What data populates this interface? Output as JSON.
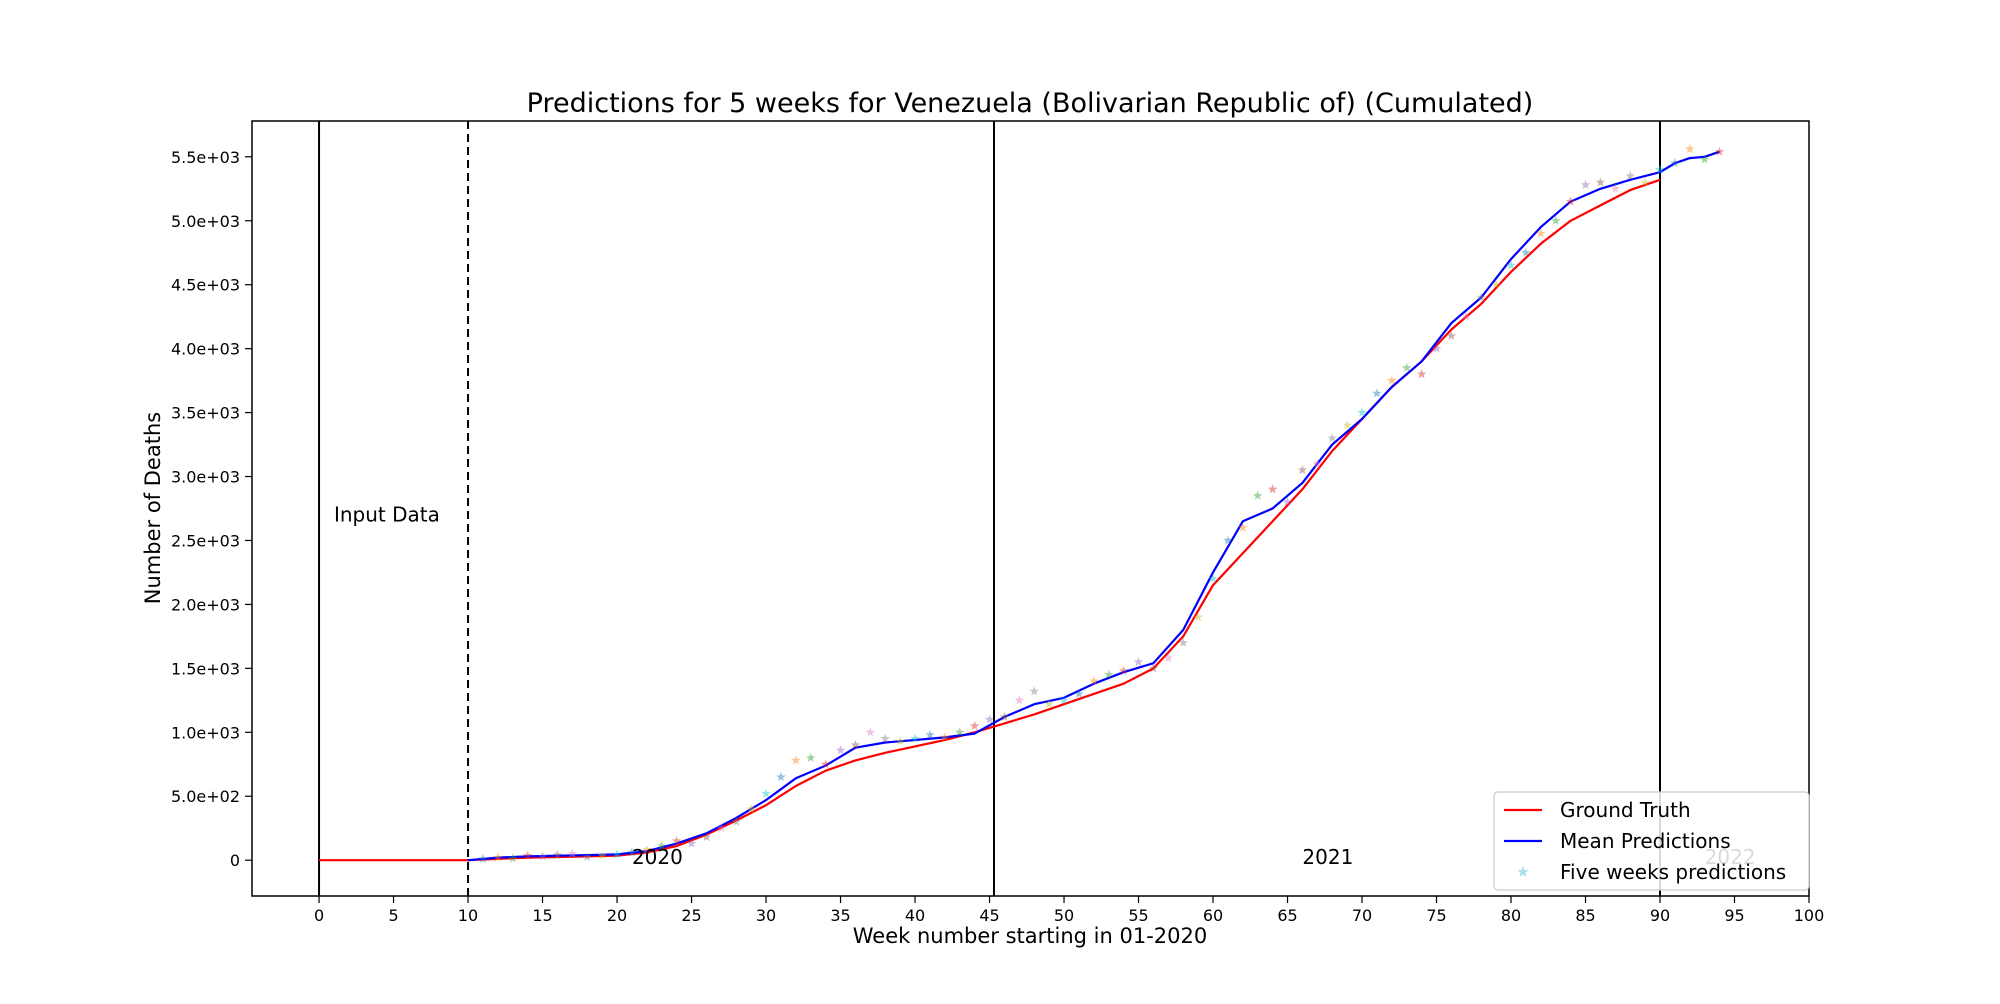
{
  "chart_data": {
    "type": "line",
    "title": "Predictions for 5 weeks for Venezuela (Bolivarian Republic of) (Cumulated)",
    "xlabel": "Week number starting in 01-2020",
    "ylabel": "Number of Deaths",
    "xlim": [
      -4.5,
      100
    ],
    "ylim": [
      -280,
      5780
    ],
    "x_ticks": [
      0,
      5,
      10,
      15,
      20,
      25,
      30,
      35,
      40,
      45,
      50,
      55,
      60,
      65,
      70,
      75,
      80,
      85,
      90,
      95,
      100
    ],
    "x_tick_labels": [
      "0",
      "5",
      "10",
      "15",
      "20",
      "25",
      "30",
      "35",
      "40",
      "45",
      "50",
      "55",
      "60",
      "65",
      "70",
      "75",
      "80",
      "85",
      "90",
      "95",
      "100"
    ],
    "y_ticks": [
      0,
      500,
      1000,
      1500,
      2000,
      2500,
      3000,
      3500,
      4000,
      4500,
      5000,
      5500
    ],
    "y_tick_labels": [
      "0",
      "5.0e+02",
      "1.0e+03",
      "1.5e+03",
      "2.0e+03",
      "2.5e+03",
      "3.0e+03",
      "3.5e+03",
      "4.0e+03",
      "4.5e+03",
      "5.0e+03",
      "5.5e+03"
    ],
    "grid": false,
    "legend_position": "lower-right",
    "vertical_lines": [
      {
        "x": 0,
        "style": "solid"
      },
      {
        "x": 10,
        "style": "dashed"
      },
      {
        "x": 45.3,
        "style": "solid"
      },
      {
        "x": 90,
        "style": "solid"
      }
    ],
    "annotations": [
      {
        "text": "Input Data",
        "x": 1,
        "y": 2650,
        "color": "#000000"
      },
      {
        "text": "2020",
        "x": 21,
        "y": -30,
        "color": "#000000"
      },
      {
        "text": "2021",
        "x": 66,
        "y": -30,
        "color": "#000000"
      },
      {
        "text": "2022",
        "x": 93,
        "y": -30,
        "color": "#bfbfbf"
      }
    ],
    "series": [
      {
        "name": "Ground Truth",
        "color": "#ff0000",
        "style": "line",
        "x": [
          0,
          2,
          4,
          6,
          8,
          10,
          12,
          14,
          16,
          18,
          20,
          22,
          24,
          26,
          28,
          30,
          32,
          34,
          36,
          38,
          40,
          42,
          44,
          46,
          48,
          50,
          52,
          54,
          56,
          58,
          60,
          62,
          64,
          66,
          68,
          70,
          72,
          74,
          76,
          78,
          80,
          82,
          84,
          86,
          88,
          90
        ],
        "values": [
          0,
          0,
          0,
          0,
          0,
          0,
          10,
          20,
          25,
          30,
          35,
          60,
          110,
          200,
          310,
          430,
          580,
          700,
          780,
          840,
          890,
          940,
          1000,
          1070,
          1140,
          1220,
          1300,
          1380,
          1500,
          1750,
          2150,
          2400,
          2650,
          2900,
          3200,
          3450,
          3700,
          3900,
          4150,
          4350,
          4600,
          4820,
          5000,
          5120,
          5240,
          5320
        ]
      },
      {
        "name": "Mean Predictions",
        "color": "#0000ff",
        "style": "line",
        "x": [
          10,
          12,
          14,
          16,
          18,
          20,
          22,
          24,
          26,
          28,
          30,
          32,
          34,
          36,
          38,
          40,
          42,
          44,
          46,
          48,
          50,
          52,
          54,
          56,
          58,
          60,
          61,
          62,
          64,
          66,
          68,
          70,
          72,
          74,
          76,
          78,
          80,
          82,
          84,
          86,
          88,
          90,
          91,
          92,
          93,
          94
        ],
        "values": [
          0,
          20,
          30,
          35,
          40,
          45,
          70,
          130,
          210,
          330,
          470,
          640,
          740,
          880,
          920,
          940,
          960,
          990,
          1120,
          1220,
          1270,
          1380,
          1470,
          1540,
          1800,
          2250,
          2450,
          2650,
          2750,
          2950,
          3250,
          3450,
          3700,
          3900,
          4200,
          4400,
          4700,
          4950,
          5150,
          5250,
          5320,
          5380,
          5450,
          5490,
          5500,
          5540
        ]
      },
      {
        "name": "Five weeks predictions",
        "color": "#87ceeb",
        "style": "scatter",
        "marker": "star",
        "x": [
          11,
          12,
          13,
          14,
          15,
          16,
          17,
          18,
          19,
          20,
          21,
          22,
          23,
          24,
          25,
          26,
          27,
          28,
          29,
          30,
          31,
          32,
          33,
          34,
          35,
          36,
          37,
          38,
          39,
          40,
          41,
          42,
          43,
          44,
          45,
          46,
          47,
          48,
          49,
          50,
          51,
          52,
          53,
          54,
          55,
          56,
          57,
          58,
          59,
          60,
          61,
          62,
          63,
          64,
          65,
          66,
          67,
          68,
          69,
          70,
          71,
          72,
          73,
          74,
          75,
          76,
          77,
          78,
          79,
          80,
          81,
          82,
          83,
          84,
          85,
          86,
          87,
          88,
          89,
          90,
          91,
          92,
          93,
          94
        ],
        "values": [
          10,
          20,
          15,
          35,
          30,
          40,
          50,
          25,
          35,
          45,
          60,
          80,
          110,
          150,
          130,
          180,
          250,
          300,
          400,
          520,
          650,
          780,
          800,
          750,
          860,
          900,
          1000,
          950,
          930,
          950,
          980,
          960,
          1000,
          1050,
          1100,
          1120,
          1250,
          1320,
          1220,
          1250,
          1300,
          1400,
          1450,
          1480,
          1550,
          1500,
          1580,
          1700,
          1900,
          2200,
          2500,
          2600,
          2850,
          2900,
          2800,
          3050,
          3100,
          3300,
          3400,
          3500,
          3650,
          3750,
          3850,
          3800,
          4000,
          4100,
          4250,
          4400,
          4500,
          4650,
          4750,
          4900,
          5000,
          5150,
          5280,
          5300,
          5250,
          5350,
          5300,
          5400,
          5450,
          5560,
          5480,
          5540
        ],
        "point_colors": [
          "#1f77b4",
          "#ff7f0e",
          "#2ca02c",
          "#d62728",
          "#9467bd",
          "#8c564b",
          "#e377c2",
          "#7f7f7f",
          "#bcbd22",
          "#17becf"
        ]
      }
    ],
    "legend": [
      "Ground Truth",
      "Mean Predictions",
      "Five weeks predictions"
    ]
  }
}
